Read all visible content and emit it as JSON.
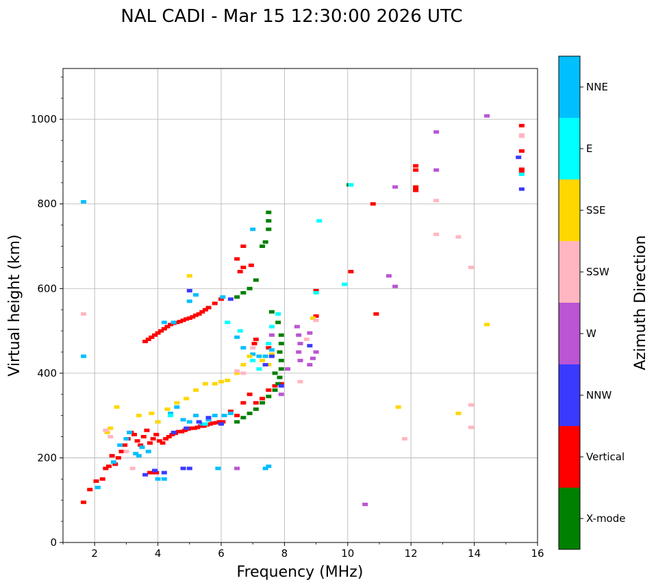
{
  "chart_data": {
    "type": "scatter",
    "title": "NAL CADI - Mar 15 12:30:00 2026 UTC",
    "xlabel": "Frequency (MHz)",
    "ylabel": "Virtual height (km)",
    "xlim": [
      1,
      16
    ],
    "ylim": [
      0,
      1120
    ],
    "xticks": [
      2,
      4,
      6,
      8,
      10,
      12,
      14,
      16
    ],
    "yticks": [
      0,
      200,
      400,
      600,
      800,
      1000
    ],
    "grid": true,
    "colorbar": {
      "title": "Azimuth Direction",
      "categories": [
        {
          "name": "NNE",
          "color": "#00bfff"
        },
        {
          "name": "E",
          "color": "#00ffff"
        },
        {
          "name": "SSE",
          "color": "#ffd700"
        },
        {
          "name": "SSW",
          "color": "#ffb6c1"
        },
        {
          "name": "W",
          "color": "#ba55d3"
        },
        {
          "name": "NNW",
          "color": "#3a3aff"
        },
        {
          "name": "Vertical",
          "color": "#ff0000"
        },
        {
          "name": "X-mode",
          "color": "#008000"
        }
      ]
    },
    "series": [
      {
        "name": "Vertical",
        "points": [
          [
            1.65,
            95
          ],
          [
            1.85,
            125
          ],
          [
            2.05,
            145
          ],
          [
            2.25,
            150
          ],
          [
            2.35,
            175
          ],
          [
            2.45,
            180
          ],
          [
            2.55,
            205
          ],
          [
            2.65,
            185
          ],
          [
            2.75,
            200
          ],
          [
            2.85,
            215
          ],
          [
            2.95,
            230
          ],
          [
            3.05,
            245
          ],
          [
            3.15,
            260
          ],
          [
            3.25,
            255
          ],
          [
            3.35,
            240
          ],
          [
            3.45,
            230
          ],
          [
            3.55,
            250
          ],
          [
            3.65,
            265
          ],
          [
            3.75,
            235
          ],
          [
            3.85,
            245
          ],
          [
            3.95,
            255
          ],
          [
            4.05,
            240
          ],
          [
            4.15,
            235
          ],
          [
            4.25,
            245
          ],
          [
            4.35,
            250
          ],
          [
            4.45,
            255
          ],
          [
            4.55,
            258
          ],
          [
            4.65,
            262
          ],
          [
            4.75,
            262
          ],
          [
            4.85,
            265
          ],
          [
            4.95,
            268
          ],
          [
            5.05,
            270
          ],
          [
            5.15,
            270
          ],
          [
            5.25,
            272
          ],
          [
            5.35,
            275
          ],
          [
            5.45,
            275
          ],
          [
            5.55,
            278
          ],
          [
            5.65,
            280
          ],
          [
            5.75,
            282
          ],
          [
            5.85,
            283
          ],
          [
            5.95,
            285
          ],
          [
            6.05,
            285
          ],
          [
            3.75,
            165
          ],
          [
            3.85,
            165
          ],
          [
            3.95,
            165
          ],
          [
            3.6,
            475
          ],
          [
            3.7,
            480
          ],
          [
            3.8,
            485
          ],
          [
            3.9,
            490
          ],
          [
            4.0,
            495
          ],
          [
            4.1,
            500
          ],
          [
            4.2,
            505
          ],
          [
            4.3,
            510
          ],
          [
            4.4,
            515
          ],
          [
            4.5,
            518
          ],
          [
            4.6,
            520
          ],
          [
            4.7,
            522
          ],
          [
            4.8,
            525
          ],
          [
            4.9,
            528
          ],
          [
            5.0,
            530
          ],
          [
            5.1,
            533
          ],
          [
            5.2,
            537
          ],
          [
            5.3,
            540
          ],
          [
            5.4,
            545
          ],
          [
            5.5,
            550
          ],
          [
            5.6,
            555
          ],
          [
            5.8,
            565
          ],
          [
            6.0,
            575
          ],
          [
            6.6,
            640
          ],
          [
            6.7,
            650
          ],
          [
            6.5,
            670
          ],
          [
            6.7,
            700
          ],
          [
            6.3,
            310
          ],
          [
            6.5,
            300
          ],
          [
            6.7,
            330
          ],
          [
            6.9,
            350
          ],
          [
            7.1,
            330
          ],
          [
            7.3,
            340
          ],
          [
            7.5,
            360
          ],
          [
            7.7,
            370
          ],
          [
            7.9,
            375
          ],
          [
            7.1,
            480
          ],
          [
            7.5,
            460
          ],
          [
            9.0,
            595
          ],
          [
            9.0,
            535
          ],
          [
            10.1,
            640
          ],
          [
            10.8,
            800
          ],
          [
            10.9,
            540
          ],
          [
            12.15,
            890
          ],
          [
            12.15,
            880
          ],
          [
            12.15,
            840
          ],
          [
            12.15,
            832
          ],
          [
            15.5,
            985
          ],
          [
            15.5,
            925
          ],
          [
            15.5,
            882
          ],
          [
            15.5,
            875
          ],
          [
            6.95,
            655
          ],
          [
            7.05,
            470
          ]
        ]
      },
      {
        "name": "X-mode",
        "points": [
          [
            6.5,
            285
          ],
          [
            6.7,
            295
          ],
          [
            6.9,
            305
          ],
          [
            7.1,
            315
          ],
          [
            7.3,
            330
          ],
          [
            7.5,
            345
          ],
          [
            7.7,
            360
          ],
          [
            7.8,
            375
          ],
          [
            7.85,
            390
          ],
          [
            7.9,
            410
          ],
          [
            7.9,
            430
          ],
          [
            7.85,
            450
          ],
          [
            7.9,
            470
          ],
          [
            7.9,
            490
          ],
          [
            7.8,
            520
          ],
          [
            7.5,
            780
          ],
          [
            7.5,
            760
          ],
          [
            7.5,
            740
          ],
          [
            7.4,
            710
          ],
          [
            7.1,
            620
          ],
          [
            6.9,
            600
          ],
          [
            6.7,
            590
          ],
          [
            6.5,
            580
          ],
          [
            7.6,
            545
          ],
          [
            7.3,
            700
          ],
          [
            10.05,
            845
          ],
          [
            7.7,
            400
          ]
        ]
      },
      {
        "name": "NNE",
        "points": [
          [
            1.65,
            805
          ],
          [
            1.65,
            440
          ],
          [
            2.1,
            130
          ],
          [
            2.6,
            190
          ],
          [
            2.8,
            230
          ],
          [
            3.0,
            245
          ],
          [
            3.1,
            260
          ],
          [
            3.3,
            210
          ],
          [
            3.4,
            205
          ],
          [
            3.5,
            225
          ],
          [
            3.7,
            215
          ],
          [
            4.0,
            150
          ],
          [
            4.2,
            150
          ],
          [
            4.4,
            305
          ],
          [
            4.6,
            320
          ],
          [
            4.8,
            290
          ],
          [
            5.0,
            285
          ],
          [
            5.2,
            300
          ],
          [
            5.4,
            280
          ],
          [
            5.6,
            290
          ],
          [
            5.8,
            300
          ],
          [
            5.9,
            175
          ],
          [
            6.1,
            300
          ],
          [
            6.3,
            305
          ],
          [
            6.5,
            485
          ],
          [
            6.7,
            460
          ],
          [
            7.0,
            445
          ],
          [
            7.2,
            440
          ],
          [
            7.4,
            440
          ],
          [
            7.6,
            455
          ],
          [
            7.5,
            180
          ],
          [
            7.4,
            175
          ],
          [
            6.05,
            580
          ],
          [
            5.2,
            585
          ],
          [
            5.0,
            570
          ],
          [
            4.2,
            520
          ],
          [
            4.5,
            520
          ],
          [
            7.0,
            740
          ]
        ]
      },
      {
        "name": "E",
        "points": [
          [
            6.2,
            520
          ],
          [
            6.6,
            500
          ],
          [
            7.0,
            430
          ],
          [
            7.2,
            410
          ],
          [
            7.5,
            470
          ],
          [
            7.6,
            510
          ],
          [
            7.8,
            540
          ],
          [
            9.0,
            590
          ],
          [
            9.1,
            760
          ],
          [
            9.9,
            610
          ],
          [
            10.1,
            845
          ],
          [
            4.0,
            285
          ],
          [
            4.4,
            300
          ],
          [
            5.5,
            280
          ],
          [
            15.5,
            870
          ]
        ]
      },
      {
        "name": "SSE",
        "points": [
          [
            2.4,
            260
          ],
          [
            2.5,
            270
          ],
          [
            2.7,
            320
          ],
          [
            3.4,
            300
          ],
          [
            3.8,
            305
          ],
          [
            4.0,
            285
          ],
          [
            4.3,
            315
          ],
          [
            4.6,
            330
          ],
          [
            4.9,
            340
          ],
          [
            5.2,
            360
          ],
          [
            5.5,
            375
          ],
          [
            5.8,
            375
          ],
          [
            6.0,
            380
          ],
          [
            6.2,
            383
          ],
          [
            6.5,
            400
          ],
          [
            6.7,
            420
          ],
          [
            6.9,
            440
          ],
          [
            7.3,
            430
          ],
          [
            7.5,
            420
          ],
          [
            7.6,
            445
          ],
          [
            8.9,
            530
          ],
          [
            5.0,
            630
          ],
          [
            11.6,
            320
          ],
          [
            13.5,
            305
          ],
          [
            14.4,
            515
          ]
        ]
      },
      {
        "name": "SSW",
        "points": [
          [
            1.65,
            540
          ],
          [
            2.35,
            265
          ],
          [
            2.5,
            250
          ],
          [
            3.0,
            215
          ],
          [
            3.2,
            175
          ],
          [
            6.5,
            405
          ],
          [
            6.7,
            400
          ],
          [
            7.0,
            460
          ],
          [
            8.5,
            380
          ],
          [
            8.7,
            480
          ],
          [
            9.0,
            525
          ],
          [
            11.8,
            245
          ],
          [
            12.8,
            808
          ],
          [
            12.8,
            728
          ],
          [
            13.5,
            722
          ],
          [
            13.9,
            650
          ],
          [
            13.9,
            325
          ],
          [
            13.9,
            272
          ],
          [
            15.5,
            963
          ],
          [
            15.5,
            960
          ]
        ]
      },
      {
        "name": "W",
        "points": [
          [
            8.4,
            510
          ],
          [
            8.45,
            490
          ],
          [
            8.5,
            470
          ],
          [
            8.45,
            450
          ],
          [
            8.5,
            430
          ],
          [
            8.8,
            420
          ],
          [
            8.9,
            435
          ],
          [
            9.0,
            450
          ],
          [
            8.1,
            410
          ],
          [
            7.9,
            350
          ],
          [
            8.8,
            495
          ],
          [
            10.55,
            90
          ],
          [
            11.3,
            630
          ],
          [
            11.5,
            605
          ],
          [
            11.5,
            840
          ],
          [
            12.8,
            970
          ],
          [
            12.8,
            880
          ],
          [
            14.4,
            1008
          ],
          [
            7.6,
            490
          ],
          [
            6.5,
            175
          ]
        ]
      },
      {
        "name": "NNW",
        "points": [
          [
            3.6,
            160
          ],
          [
            3.9,
            170
          ],
          [
            4.2,
            165
          ],
          [
            4.8,
            175
          ],
          [
            5.0,
            175
          ],
          [
            4.5,
            260
          ],
          [
            4.9,
            270
          ],
          [
            5.3,
            285
          ],
          [
            5.6,
            295
          ],
          [
            6.0,
            280
          ],
          [
            7.4,
            420
          ],
          [
            7.6,
            440
          ],
          [
            7.9,
            370
          ],
          [
            8.8,
            465
          ],
          [
            15.4,
            910
          ],
          [
            15.5,
            835
          ],
          [
            5.0,
            595
          ],
          [
            6.3,
            575
          ]
        ]
      }
    ]
  }
}
